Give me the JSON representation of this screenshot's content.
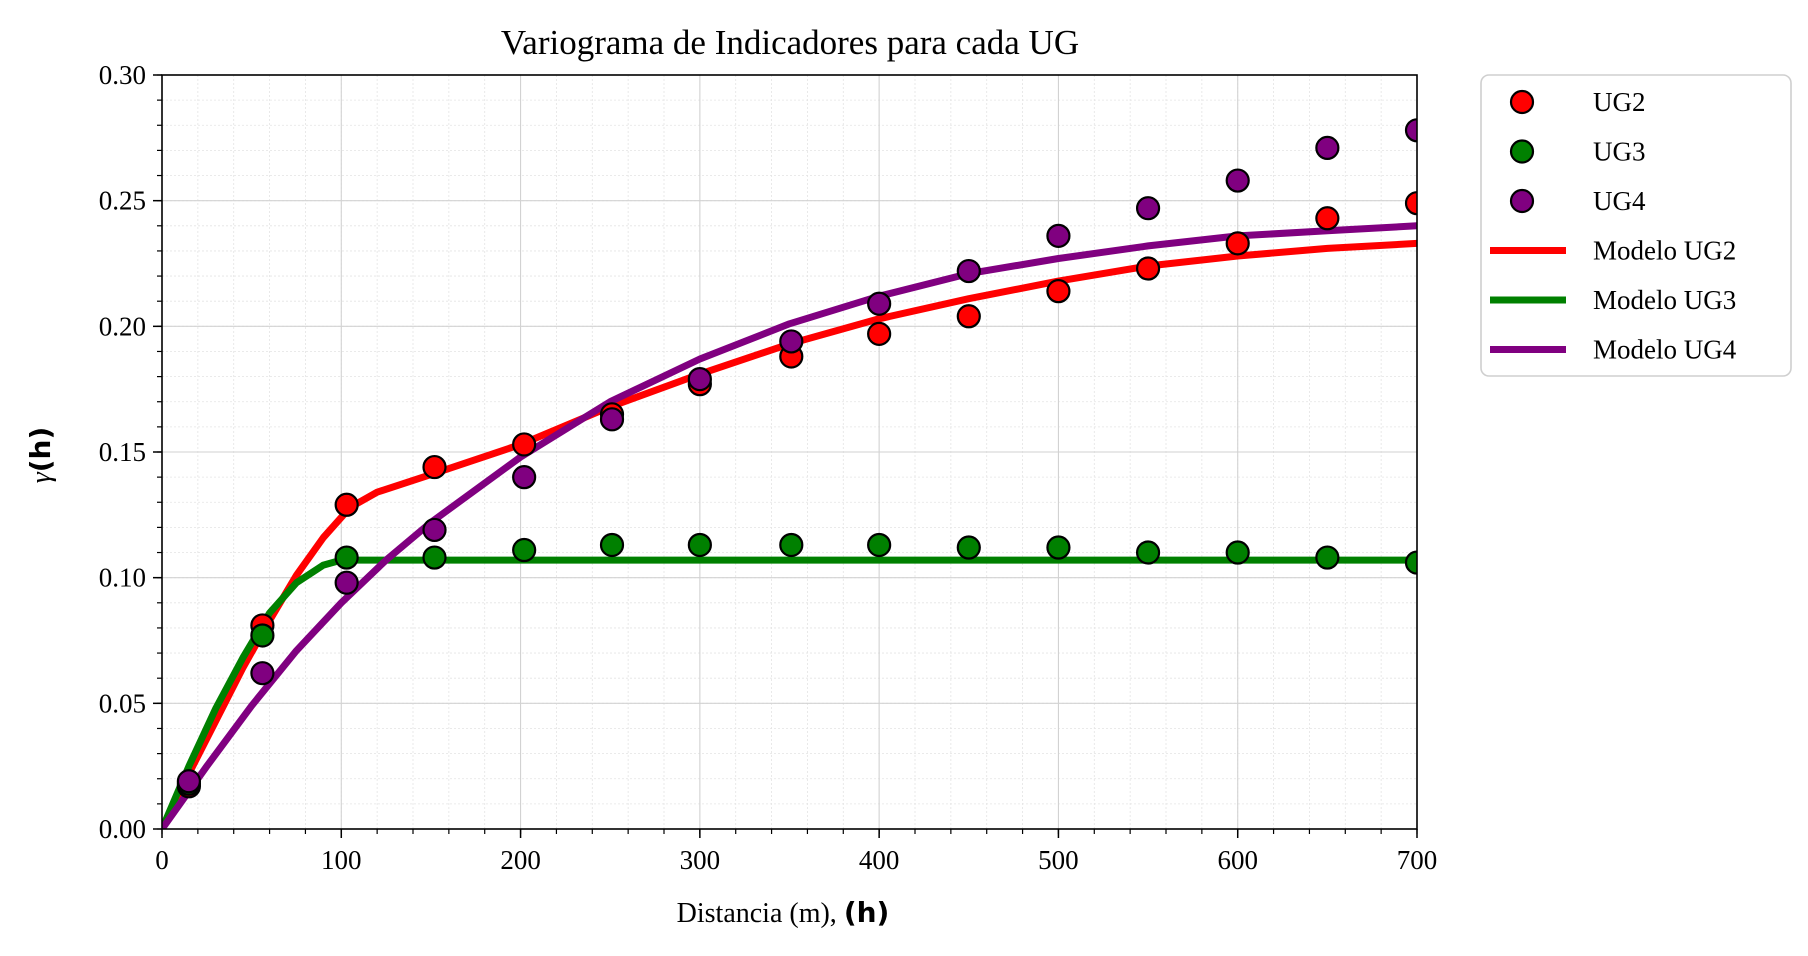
{
  "chart_data": {
    "type": "scatter",
    "title": "Variograma de Indicadores para cada UG",
    "xlabel_text": "Distancia (m), ",
    "xlabel_bold": "(h)",
    "ylabel_symbol": "γ",
    "ylabel_bold": "(h)",
    "xlim": [
      0,
      700
    ],
    "ylim": [
      0,
      0.3
    ],
    "xticks": [
      0,
      100,
      200,
      300,
      400,
      500,
      600,
      700
    ],
    "xtick_labels": [
      "0",
      "100",
      "200",
      "300",
      "400",
      "500",
      "600",
      "700"
    ],
    "yticks": [
      0,
      0.05,
      0.1,
      0.15,
      0.2,
      0.25,
      0.3
    ],
    "ytick_labels": [
      "0.00",
      "0.05",
      "0.10",
      "0.15",
      "0.20",
      "0.25",
      "0.30"
    ],
    "grid": true,
    "legend_position": "outside-top-right",
    "scatter_series": [
      {
        "name": "UG2",
        "color": "#ff0000",
        "points": [
          [
            15,
            0.017
          ],
          [
            56,
            0.081
          ],
          [
            103,
            0.129
          ],
          [
            152,
            0.144
          ],
          [
            202,
            0.153
          ],
          [
            251,
            0.165
          ],
          [
            300,
            0.177
          ],
          [
            351,
            0.188
          ],
          [
            400,
            0.197
          ],
          [
            450,
            0.204
          ],
          [
            500,
            0.214
          ],
          [
            550,
            0.223
          ],
          [
            600,
            0.233
          ],
          [
            650,
            0.243
          ],
          [
            700,
            0.249
          ]
        ]
      },
      {
        "name": "UG3",
        "color": "#008000",
        "points": [
          [
            15,
            0.018
          ],
          [
            56,
            0.077
          ],
          [
            103,
            0.108
          ],
          [
            152,
            0.108
          ],
          [
            202,
            0.111
          ],
          [
            251,
            0.113
          ],
          [
            300,
            0.113
          ],
          [
            351,
            0.113
          ],
          [
            400,
            0.113
          ],
          [
            450,
            0.112
          ],
          [
            500,
            0.112
          ],
          [
            550,
            0.11
          ],
          [
            600,
            0.11
          ],
          [
            650,
            0.108
          ],
          [
            700,
            0.106
          ]
        ]
      },
      {
        "name": "UG4",
        "color": "#800080",
        "points": [
          [
            15,
            0.019
          ],
          [
            56,
            0.062
          ],
          [
            103,
            0.098
          ],
          [
            152,
            0.119
          ],
          [
            202,
            0.14
          ],
          [
            251,
            0.163
          ],
          [
            300,
            0.179
          ],
          [
            351,
            0.194
          ],
          [
            400,
            0.209
          ],
          [
            450,
            0.222
          ],
          [
            500,
            0.236
          ],
          [
            550,
            0.247
          ],
          [
            600,
            0.258
          ],
          [
            650,
            0.271
          ],
          [
            700,
            0.278
          ]
        ]
      }
    ],
    "line_series": [
      {
        "name": "Modelo UG2",
        "color": "#ff0000",
        "points": [
          [
            0,
            0
          ],
          [
            15,
            0.022
          ],
          [
            30,
            0.043
          ],
          [
            45,
            0.064
          ],
          [
            60,
            0.083
          ],
          [
            75,
            0.101
          ],
          [
            90,
            0.116
          ],
          [
            105,
            0.128
          ],
          [
            120,
            0.134
          ],
          [
            150,
            0.141
          ],
          [
            200,
            0.153
          ],
          [
            250,
            0.168
          ],
          [
            300,
            0.181
          ],
          [
            350,
            0.193
          ],
          [
            400,
            0.203
          ],
          [
            450,
            0.211
          ],
          [
            500,
            0.218
          ],
          [
            550,
            0.224
          ],
          [
            600,
            0.228
          ],
          [
            650,
            0.231
          ],
          [
            700,
            0.233
          ]
        ]
      },
      {
        "name": "Modelo UG3",
        "color": "#008000",
        "points": [
          [
            0,
            0
          ],
          [
            15,
            0.025
          ],
          [
            30,
            0.048
          ],
          [
            45,
            0.068
          ],
          [
            60,
            0.086
          ],
          [
            75,
            0.098
          ],
          [
            90,
            0.105
          ],
          [
            100,
            0.107
          ],
          [
            700,
            0.107
          ]
        ]
      },
      {
        "name": "Modelo UG4",
        "color": "#800080",
        "points": [
          [
            0,
            0
          ],
          [
            25,
            0.025
          ],
          [
            50,
            0.049
          ],
          [
            75,
            0.071
          ],
          [
            100,
            0.09
          ],
          [
            125,
            0.107
          ],
          [
            150,
            0.122
          ],
          [
            200,
            0.148
          ],
          [
            250,
            0.17
          ],
          [
            300,
            0.187
          ],
          [
            350,
            0.201
          ],
          [
            400,
            0.212
          ],
          [
            450,
            0.221
          ],
          [
            500,
            0.227
          ],
          [
            550,
            0.232
          ],
          [
            600,
            0.236
          ],
          [
            650,
            0.238
          ],
          [
            700,
            0.24
          ]
        ]
      }
    ],
    "legend": [
      "UG2",
      "UG3",
      "UG4",
      "Modelo UG2",
      "Modelo UG3",
      "Modelo UG4"
    ]
  }
}
